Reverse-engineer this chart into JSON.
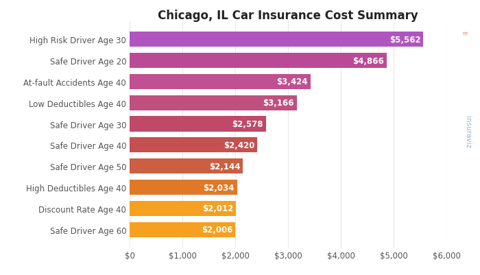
{
  "title": "Chicago, IL Car Insurance Cost Summary",
  "categories": [
    "Safe Driver Age 60",
    "Discount Rate Age 40",
    "High Deductibles Age 40",
    "Safe Driver Age 50",
    "Safe Driver Age 40",
    "Safe Driver Age 30",
    "Low Deductibles Age 40",
    "At-fault Accidents Age 40",
    "Safe Driver Age 20",
    "High Risk Driver Age 30"
  ],
  "values": [
    2006,
    2012,
    2034,
    2144,
    2420,
    2578,
    3166,
    3424,
    4866,
    5562
  ],
  "bar_colors": [
    "#F5A020",
    "#F5A020",
    "#E07828",
    "#CC5E42",
    "#C45050",
    "#C04868",
    "#C05080",
    "#C05090",
    "#BB4A96",
    "#B055C0"
  ],
  "labels": [
    "$2,006",
    "$2,012",
    "$2,034",
    "$2,144",
    "$2,420",
    "$2,578",
    "$3,166",
    "$3,424",
    "$4,866",
    "$5,562"
  ],
  "xlim": [
    0,
    6000
  ],
  "xticks": [
    0,
    1000,
    2000,
    3000,
    4000,
    5000,
    6000
  ],
  "xtick_labels": [
    "$0",
    "$1,000",
    "$2,000",
    "$3,000",
    "$4,000",
    "$5,000",
    "$6,000"
  ],
  "chart_bg": "#ffffff",
  "fig_bg": "#ffffff",
  "grid_color": "#e8e8e8",
  "label_fontsize": 8.5,
  "title_fontsize": 12,
  "ytick_fontsize": 8.5,
  "xtick_fontsize": 8.5
}
